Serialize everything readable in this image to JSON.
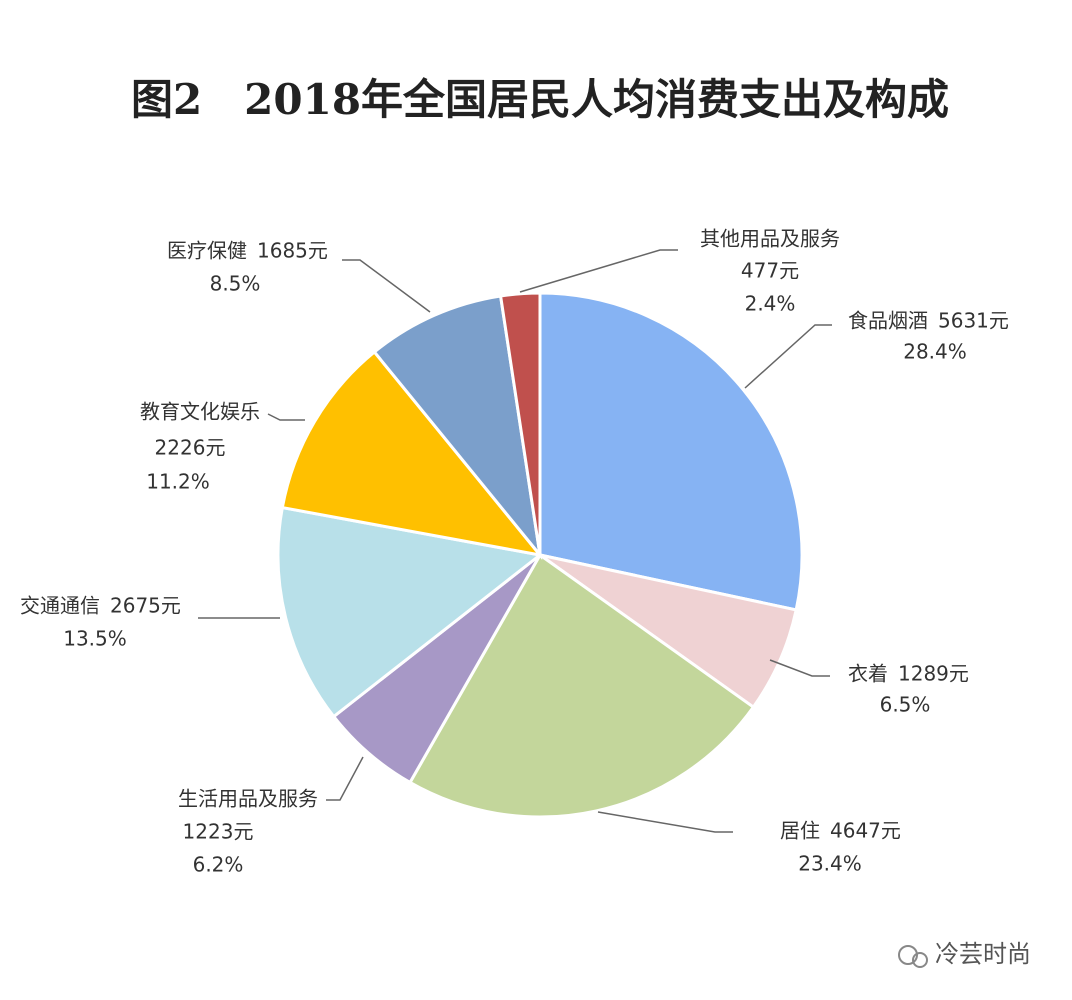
{
  "chart_data": {
    "type": "pie",
    "title": "图2　2018年全国居民人均消费支出及构成",
    "categories": [
      "食品烟酒",
      "衣着",
      "居住",
      "生活用品及服务",
      "交通通信",
      "教育文化娱乐",
      "医疗保健",
      "其他用品及服务"
    ],
    "values": [
      5631,
      1289,
      4647,
      1223,
      2675,
      2226,
      1685,
      477
    ],
    "value_labels": [
      "5631元",
      "1289元",
      "4647元",
      "1223元",
      "2675元",
      "2226元",
      "1685元",
      "477元"
    ],
    "percent_labels": [
      "28.4%",
      "6.5%",
      "23.4%",
      "6.2%",
      "13.5%",
      "11.2%",
      "8.5%",
      "2.4%"
    ],
    "colors": [
      "#86b3f3",
      "#efd2d3",
      "#c3d69b",
      "#a798c6",
      "#b8e0e9",
      "#ffc000",
      "#7b9fcb",
      "#c0504d"
    ],
    "watermark": "冷芸时尚"
  }
}
